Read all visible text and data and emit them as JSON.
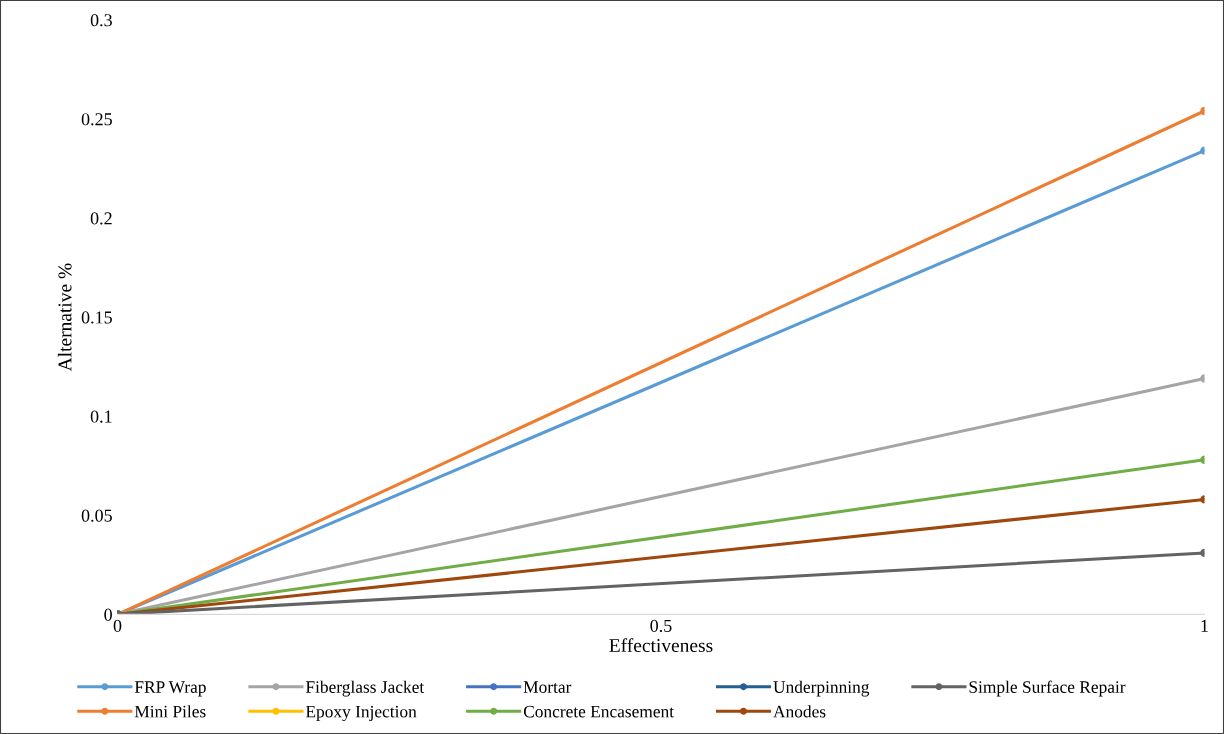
{
  "chart_data": {
    "type": "line",
    "xlabel": "Effectiveness",
    "ylabel": "Alternative %",
    "x": [
      0,
      1
    ],
    "xlim": [
      0,
      1
    ],
    "xticks": [
      0,
      0.5,
      1
    ],
    "ylim": [
      0,
      0.3
    ],
    "yticks": [
      0,
      0.05,
      0.1,
      0.15,
      0.2,
      0.25,
      0.3
    ],
    "grid": false,
    "legend": "bottom",
    "marker": "circle",
    "line_style": "solid",
    "series": [
      {
        "name": "FRP Wrap",
        "color": "#5b9bd5",
        "values": [
          0,
          0.234
        ]
      },
      {
        "name": "Mini Piles",
        "color": "#ed7d31",
        "values": [
          0,
          0.254
        ]
      },
      {
        "name": "Fiberglass Jacket",
        "color": "#a5a5a5",
        "values": [
          0,
          0.119
        ]
      },
      {
        "name": "Epoxy Injection",
        "color": "#ffc000",
        "values": [
          null,
          null
        ]
      },
      {
        "name": "Mortar",
        "color": "#4472c4",
        "values": [
          null,
          null
        ]
      },
      {
        "name": "Concrete Encasement",
        "color": "#70ad47",
        "values": [
          0,
          0.078
        ]
      },
      {
        "name": "Underpinning",
        "color": "#255e91",
        "values": [
          null,
          null
        ]
      },
      {
        "name": "Anodes",
        "color": "#9e480e",
        "values": [
          0,
          0.058
        ]
      },
      {
        "name": "Simple Surface Repair",
        "color": "#636363",
        "values": [
          0,
          0.031
        ]
      }
    ]
  }
}
